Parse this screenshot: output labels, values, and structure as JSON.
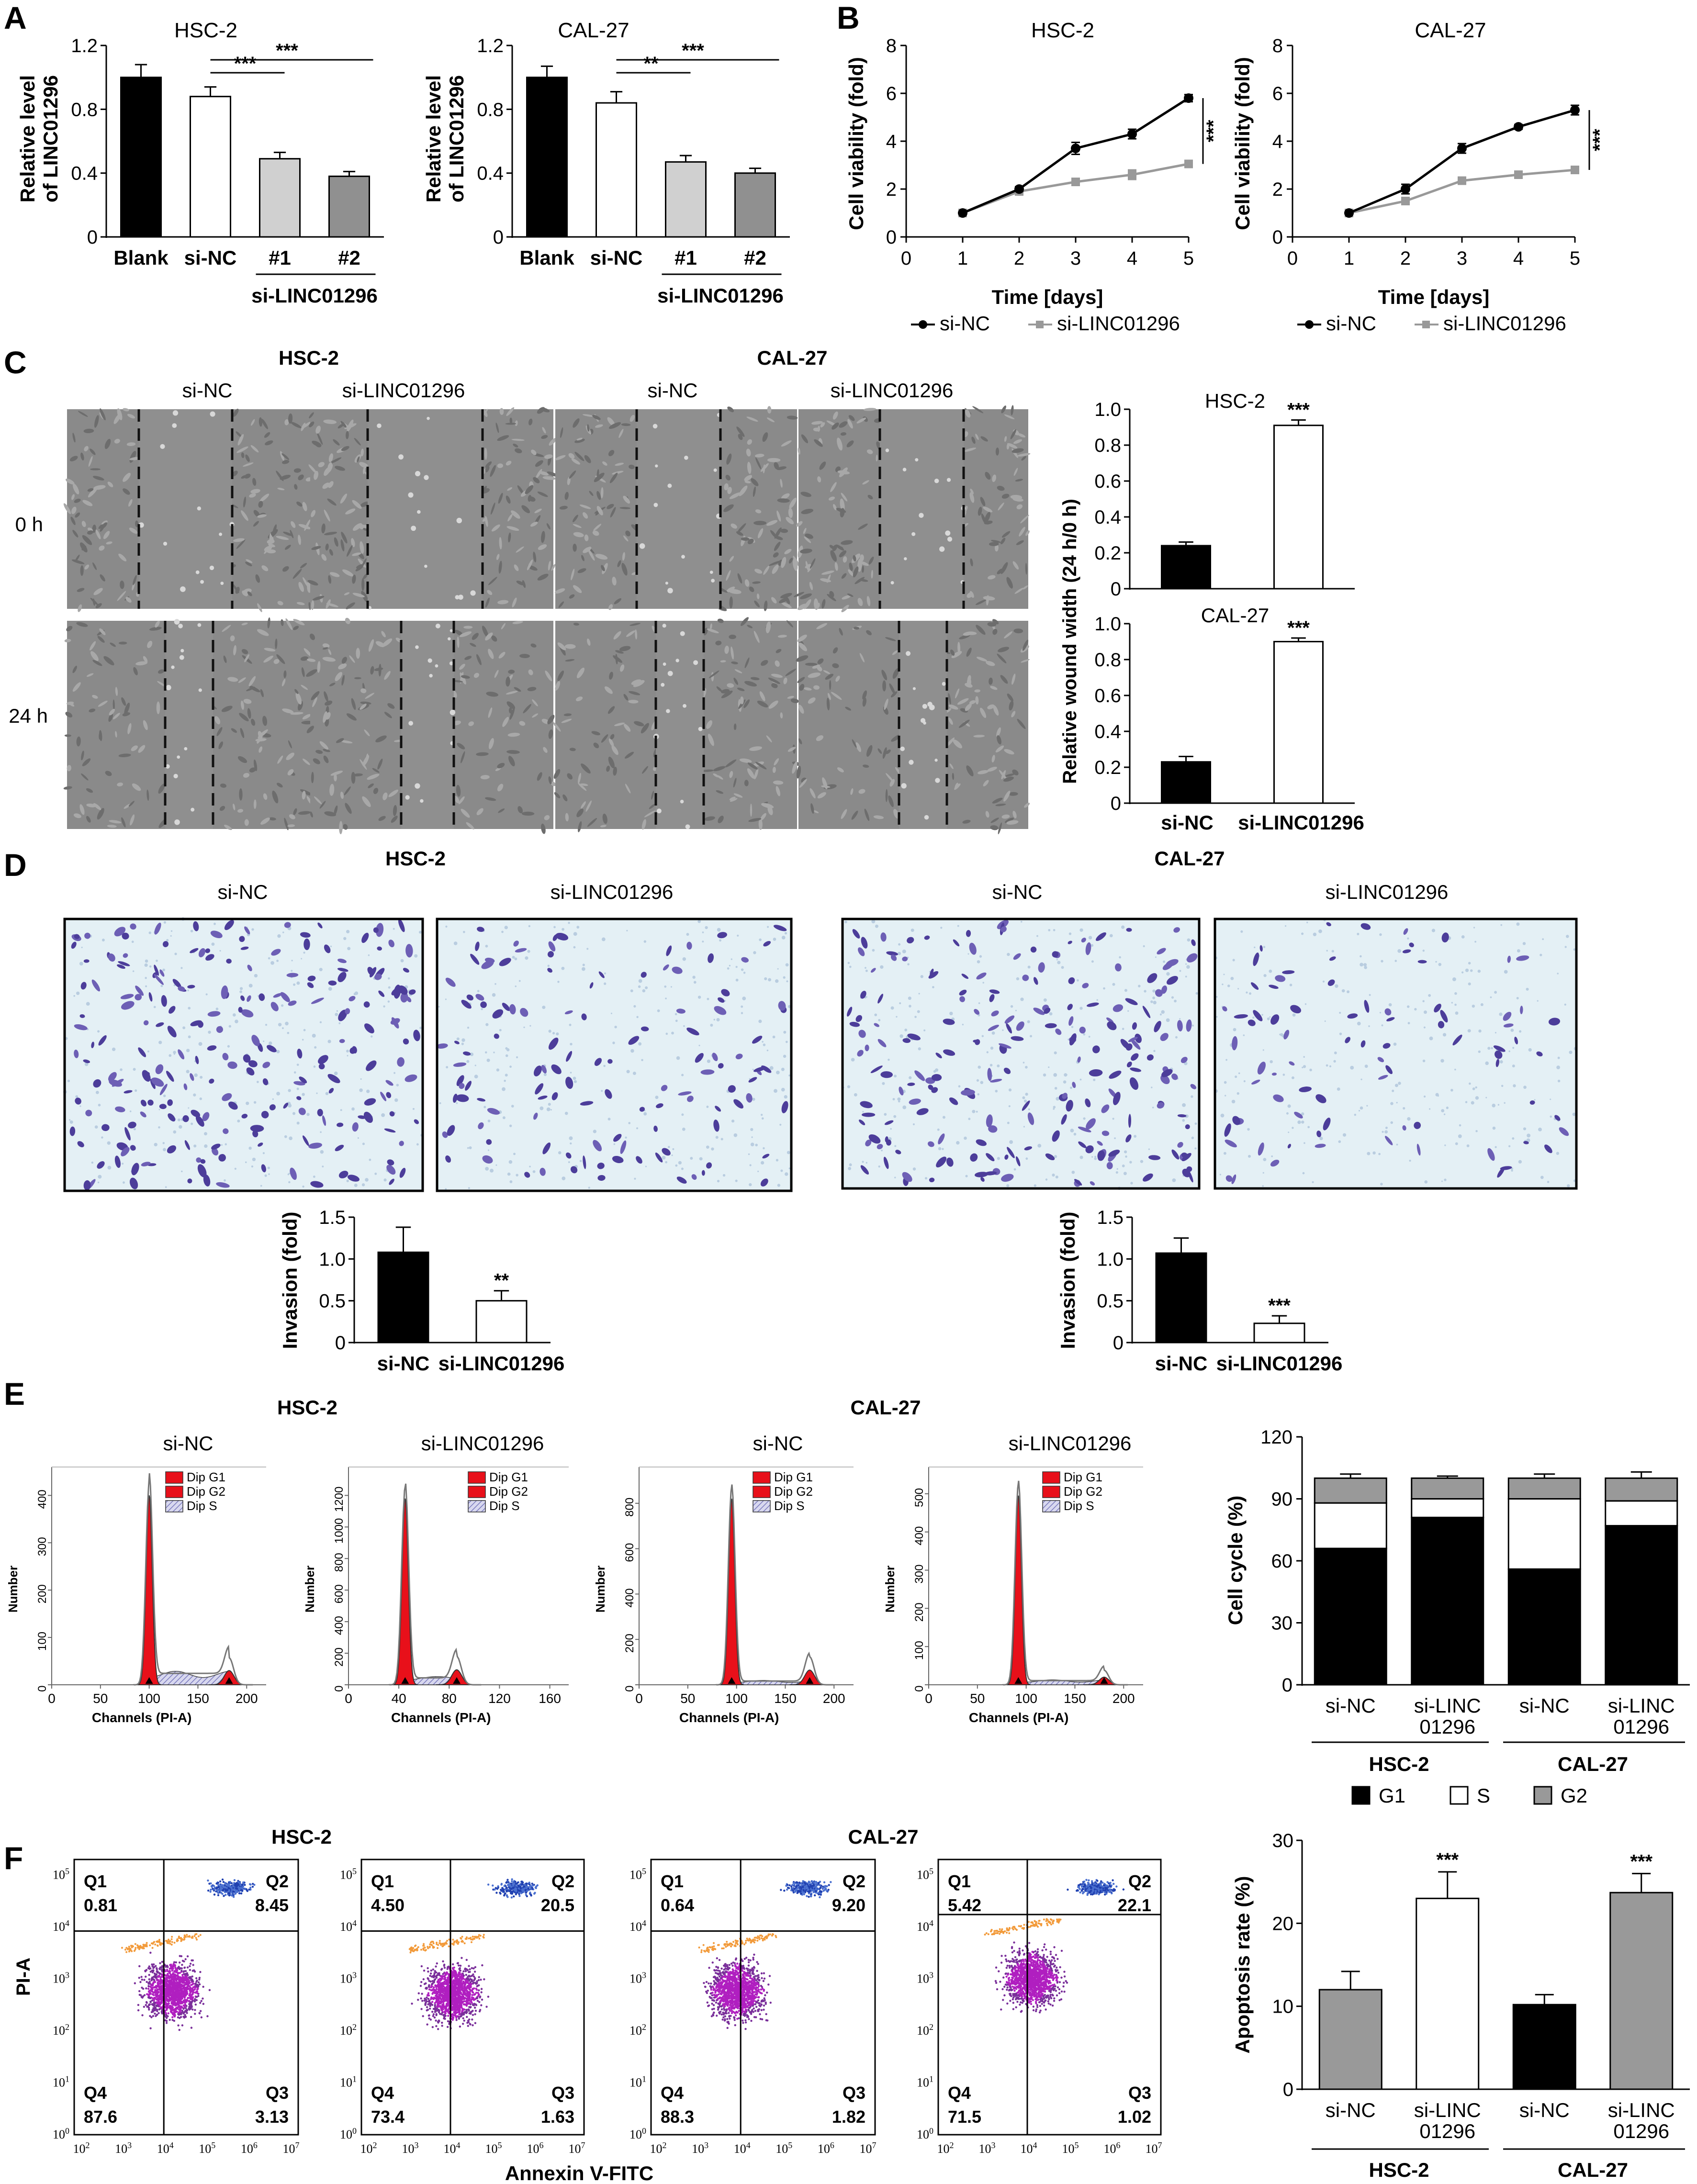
{
  "panels": {
    "A": {
      "label": "A",
      "charts": [
        {
          "title": "HSC-2",
          "ylabel_line1": "Relative level",
          "ylabel_line2": "of LINC01296",
          "categories": [
            "Blank",
            "si-NC",
            "#1",
            "#2"
          ],
          "group_label": "si-LINC01296",
          "yticks": [
            "0",
            "0.4",
            "0.8",
            "1.2"
          ],
          "sig": [
            {
              "text": "***"
            },
            {
              "text": "***"
            }
          ]
        },
        {
          "title": "CAL-27",
          "ylabel_line1": "Relative level",
          "ylabel_line2": "of LINC01296",
          "categories": [
            "Blank",
            "si-NC",
            "#1",
            "#2"
          ],
          "group_label": "si-LINC01296",
          "yticks": [
            "0",
            "0.4",
            "0.8",
            "1.2"
          ],
          "sig": [
            {
              "text": "**"
            },
            {
              "text": "***"
            }
          ]
        }
      ]
    },
    "B": {
      "label": "B",
      "charts": [
        {
          "title": "HSC-2",
          "ylabel": "Cell viability (fold)",
          "xlabel": "Time [days]",
          "xticks": [
            "0",
            "1",
            "2",
            "3",
            "4",
            "5"
          ],
          "yticks": [
            "0",
            "2",
            "4",
            "6",
            "8"
          ],
          "sig": "***",
          "legend": [
            "si-NC",
            "si-LINC01296"
          ]
        },
        {
          "title": "CAL-27",
          "ylabel": "Cell viability (fold)",
          "xlabel": "Time [days]",
          "xticks": [
            "0",
            "1",
            "2",
            "3",
            "4",
            "5"
          ],
          "yticks": [
            "0",
            "2",
            "4",
            "6",
            "8"
          ],
          "sig": "***",
          "legend": [
            "si-NC",
            "si-LINC01296"
          ]
        }
      ]
    },
    "C": {
      "label": "C",
      "groups": [
        "HSC-2",
        "CAL-27"
      ],
      "cols": [
        "si-NC",
        "si-LINC01296",
        "si-NC",
        "si-LINC01296"
      ],
      "rows": [
        "0 h",
        "24 h"
      ],
      "ylabel": "Relative wound width (24 h/0 h)",
      "charts": [
        {
          "title": "HSC-2",
          "yticks": [
            "0",
            "0.2",
            "0.4",
            "0.6",
            "0.8",
            "1.0"
          ],
          "sig": "***"
        },
        {
          "title": "CAL-27",
          "yticks": [
            "0",
            "0.2",
            "0.4",
            "0.6",
            "0.8",
            "1.0"
          ],
          "sig": "***"
        }
      ],
      "categories": [
        "si-NC",
        "si-LINC01296"
      ]
    },
    "D": {
      "label": "D",
      "groups": [
        "HSC-2",
        "CAL-27"
      ],
      "cols": [
        "si-NC",
        "si-LINC01296",
        "si-NC",
        "si-LINC01296"
      ],
      "ylabel": "Invasion (fold)",
      "yticks": [
        "0",
        "0.5",
        "1.0",
        "1.5"
      ],
      "categories": [
        "si-NC",
        "si-LINC01296"
      ],
      "sig": [
        "**",
        "***"
      ]
    },
    "E": {
      "label": "E",
      "groups": [
        "HSC-2",
        "CAL-27"
      ],
      "cols": [
        "si-NC",
        "si-LINC01296",
        "si-NC",
        "si-LINC01296"
      ],
      "hist_ylabel": "Number",
      "hist_xlabel": "Channels (PI-A)",
      "hist_legend": [
        "Dip G1",
        "Dip G2",
        "Dip S"
      ],
      "hist_xticks": [
        [
          "0",
          "50",
          "100",
          "150",
          "200"
        ],
        [
          "0",
          "40",
          "80",
          "120",
          "160"
        ],
        [
          "0",
          "50",
          "100",
          "150",
          "200"
        ],
        [
          "0",
          "50",
          "100",
          "150",
          "200"
        ]
      ],
      "hist_yticks": [
        [
          "0",
          "100",
          "200",
          "300",
          "400"
        ],
        [
          "0",
          "200",
          "400",
          "600",
          "800",
          "1000",
          "1200"
        ],
        [
          "0",
          "200",
          "400",
          "600",
          "800"
        ],
        [
          "0",
          "100",
          "200",
          "300",
          "400",
          "500"
        ]
      ],
      "hist_yticks_pos": [
        [
          0,
          100,
          200,
          300,
          400
        ],
        [
          0,
          200,
          400,
          600,
          800,
          1000,
          1200
        ],
        [
          0,
          200,
          400,
          600,
          800
        ],
        [
          0,
          100,
          200,
          300,
          400,
          500
        ]
      ],
      "bar_ylabel": "Cell cycle (%)",
      "bar_yticks": [
        "0",
        "30",
        "60",
        "90",
        "120"
      ],
      "bar_categories": [
        [
          "si-NC"
        ],
        [
          "si-LINC",
          "01296"
        ],
        [
          "si-NC"
        ],
        [
          "si-LINC",
          "01296"
        ]
      ],
      "bar_groups": [
        "HSC-2",
        "CAL-27"
      ],
      "legend": [
        "G1",
        "S",
        "G2"
      ]
    },
    "F": {
      "label": "F",
      "groups": [
        "HSC-2",
        "CAL-27"
      ],
      "cols": [
        "si-NC",
        "si-LINC01296",
        "si-NC",
        "si-LINC01296"
      ],
      "ylabel": "PI-A",
      "xlabel": "Annexin V-FITC",
      "quadrant_names": [
        "Q1",
        "Q2",
        "Q3",
        "Q4"
      ],
      "plots": [
        {
          "q1": "0.81",
          "q2": "8.45",
          "q3": "3.13",
          "q4": "87.6"
        },
        {
          "q1": "4.50",
          "q2": "20.5",
          "q3": "1.63",
          "q4": "73.4"
        },
        {
          "q1": "0.64",
          "q2": "9.20",
          "q3": "1.82",
          "q4": "88.3"
        },
        {
          "q1": "5.42",
          "q2": "22.1",
          "q3": "1.02",
          "q4": "71.5"
        }
      ],
      "bar_ylabel": "Apoptosis rate (%)",
      "bar_yticks": [
        "0",
        "10",
        "20",
        "30"
      ],
      "bar_categories": [
        [
          "si-NC"
        ],
        [
          "si-LINC",
          "01296"
        ],
        [
          "si-NC"
        ],
        [
          "si-LINC",
          "01296"
        ]
      ],
      "bar_groups": [
        "HSC-2",
        "CAL-27"
      ],
      "sig": [
        "***",
        "***"
      ]
    }
  },
  "chart_data": [
    {
      "type": "bar",
      "title": "HSC-2",
      "categories": [
        "Blank",
        "si-NC",
        "#1",
        "#2"
      ],
      "values": [
        1.0,
        0.88,
        0.49,
        0.38
      ],
      "errors": [
        0.08,
        0.06,
        0.04,
        0.03
      ],
      "ylim": [
        0,
        1.2
      ],
      "colors": [
        "#000000",
        "#ffffff",
        "#d0d0d0",
        "#909090"
      ]
    },
    {
      "type": "bar",
      "title": "CAL-27",
      "categories": [
        "Blank",
        "si-NC",
        "#1",
        "#2"
      ],
      "values": [
        1.0,
        0.84,
        0.47,
        0.4
      ],
      "errors": [
        0.07,
        0.07,
        0.04,
        0.03
      ],
      "ylim": [
        0,
        1.2
      ],
      "colors": [
        "#000000",
        "#ffffff",
        "#d0d0d0",
        "#909090"
      ]
    },
    {
      "type": "line",
      "title": "HSC-2",
      "x": [
        1,
        2,
        3,
        4,
        5
      ],
      "xlim": [
        0,
        5
      ],
      "ylim": [
        0,
        8
      ],
      "series": [
        {
          "name": "si-NC",
          "values": [
            1.0,
            2.0,
            3.7,
            4.3,
            5.8
          ],
          "errors": [
            0.05,
            0.1,
            0.25,
            0.2,
            0.15
          ],
          "color": "#000000"
        },
        {
          "name": "si-LINC01296",
          "values": [
            1.0,
            1.9,
            2.3,
            2.6,
            3.05
          ],
          "errors": [
            0.05,
            0.1,
            0.15,
            0.2,
            0.15
          ],
          "color": "#999999"
        }
      ]
    },
    {
      "type": "line",
      "title": "CAL-27",
      "x": [
        1,
        2,
        3,
        4,
        5
      ],
      "xlim": [
        0,
        5
      ],
      "ylim": [
        0,
        8
      ],
      "series": [
        {
          "name": "si-NC",
          "values": [
            1.0,
            2.0,
            3.7,
            4.6,
            5.3
          ],
          "errors": [
            0.05,
            0.2,
            0.2,
            0.1,
            0.2
          ],
          "color": "#000000"
        },
        {
          "name": "si-LINC01296",
          "values": [
            1.0,
            1.5,
            2.35,
            2.6,
            2.8
          ],
          "errors": [
            0.05,
            0.1,
            0.15,
            0.12,
            0.08
          ],
          "color": "#999999"
        }
      ]
    },
    {
      "type": "bar",
      "title": "HSC-2",
      "categories": [
        "si-NC",
        "si-LINC01296"
      ],
      "values": [
        0.24,
        0.91
      ],
      "errors": [
        0.02,
        0.03
      ],
      "ylim": [
        0,
        1.0
      ],
      "colors": [
        "#000000",
        "#ffffff"
      ]
    },
    {
      "type": "bar",
      "title": "CAL-27",
      "categories": [
        "si-NC",
        "si-LINC01296"
      ],
      "values": [
        0.23,
        0.9
      ],
      "errors": [
        0.03,
        0.02
      ],
      "ylim": [
        0,
        1.0
      ],
      "colors": [
        "#000000",
        "#ffffff"
      ]
    },
    {
      "type": "bar",
      "title": "HSC-2",
      "categories": [
        "si-NC",
        "si-LINC01296"
      ],
      "values": [
        1.08,
        0.5
      ],
      "errors": [
        0.3,
        0.12
      ],
      "ylim": [
        0,
        1.5
      ],
      "colors": [
        "#000000",
        "#ffffff"
      ]
    },
    {
      "type": "bar",
      "title": "CAL-27",
      "categories": [
        "si-NC",
        "si-LINC01296"
      ],
      "values": [
        1.07,
        0.23
      ],
      "errors": [
        0.18,
        0.09
      ],
      "ylim": [
        0,
        1.5
      ],
      "colors": [
        "#000000",
        "#ffffff"
      ]
    },
    {
      "type": "bar",
      "stacked": true,
      "categories": [
        "si-NC",
        "si-LINC01296",
        "si-NC",
        "si-LINC01296"
      ],
      "ylim": [
        0,
        120
      ],
      "series": [
        {
          "name": "G1",
          "values": [
            66,
            81,
            56,
            77
          ],
          "errors": [
            3,
            3,
            4,
            4
          ],
          "color": "#000000"
        },
        {
          "name": "S",
          "values": [
            22,
            9,
            34,
            12
          ],
          "errors": [
            2,
            3,
            2,
            3
          ],
          "color": "#ffffff"
        },
        {
          "name": "G2",
          "values": [
            12,
            10,
            10,
            11
          ],
          "errors": [
            2,
            1,
            2,
            3
          ],
          "color": "#999999"
        }
      ]
    },
    {
      "type": "bar",
      "categories": [
        "si-NC",
        "si-LINC01296",
        "si-NC",
        "si-LINC01296"
      ],
      "values": [
        12,
        23,
        10.2,
        23.7
      ],
      "errors": [
        2.2,
        3.2,
        1.2,
        2.3
      ],
      "ylim": [
        0,
        30
      ],
      "colors": [
        "#999999",
        "#ffffff",
        "#000000",
        "#999999"
      ]
    }
  ]
}
